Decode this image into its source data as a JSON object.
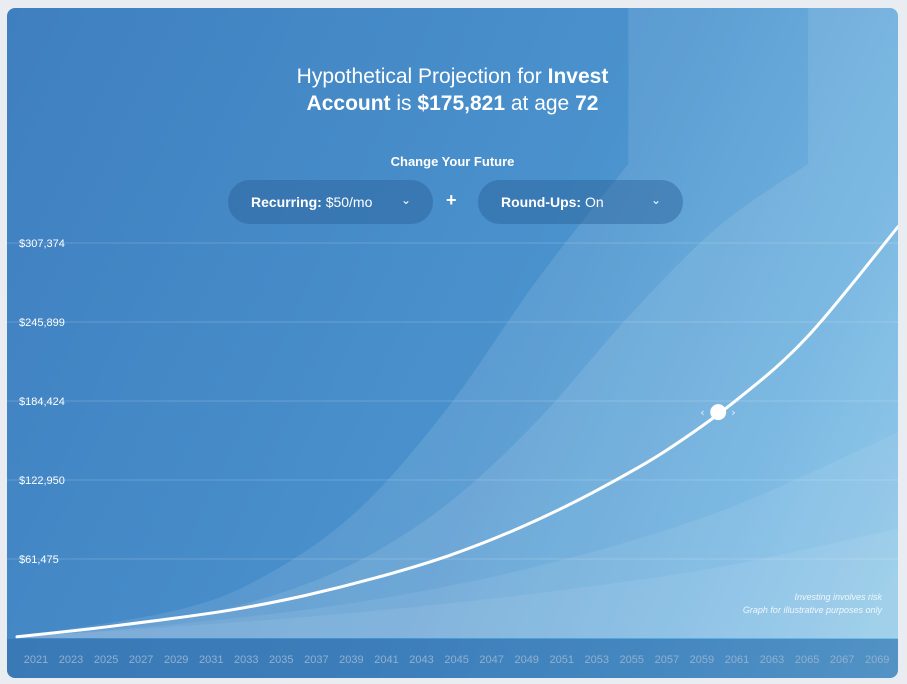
{
  "headline": {
    "prefix": "Hypothetical Projection for",
    "account": "Invest",
    "account2": "Account",
    "is": "is",
    "amount": "$175,821",
    "at_age": "at age",
    "age": "72"
  },
  "controls": {
    "change_label": "Change Your Future",
    "recurring_key": "Recurring:",
    "recurring_value": "$50/mo",
    "plus": "+",
    "roundups_key": "Round-Ups:",
    "roundups_value": "On",
    "chevron": "⌄"
  },
  "disclaimer": {
    "line1": "Investing involves risk",
    "line2": "Graph for illustrative purposes only"
  },
  "colors": {
    "background_start": "#3f7fc0",
    "background_end": "#7cc0e6",
    "line": "#ffffff"
  },
  "chart_data": {
    "type": "area",
    "title": "",
    "xlabel": "",
    "ylabel": "",
    "x_ticks": [
      "2021",
      "2023",
      "2025",
      "2027",
      "2029",
      "2031",
      "2033",
      "2035",
      "2037",
      "2039",
      "2041",
      "2043",
      "2045",
      "2047",
      "2049",
      "2051",
      "2053",
      "2055",
      "2057",
      "2059",
      "2061",
      "2063",
      "2065",
      "2067",
      "2069"
    ],
    "y_ticks": [
      "$61,475",
      "$122,950",
      "$184,424",
      "$245,899",
      "$307,374"
    ],
    "y_tick_values": [
      61475,
      122950,
      184424,
      245899,
      307374
    ],
    "ylim": [
      0,
      368849
    ],
    "xlim": [
      2021,
      2070
    ],
    "grid": true,
    "series": [
      {
        "role": "projection",
        "x": [
          2021,
          2025,
          2029,
          2033,
          2037,
          2041,
          2045,
          2049,
          2053,
          2057,
          2061,
          2065,
          2070
        ],
        "values": [
          1000,
          7000,
          14000,
          22000,
          33000,
          47000,
          64000,
          86000,
          113000,
          145000,
          185000,
          235000,
          320000
        ]
      },
      {
        "role": "band-low",
        "x": [
          2021,
          2030,
          2040,
          2050,
          2060,
          2070
        ],
        "values": [
          1000,
          9000,
          20000,
          35000,
          55000,
          85000
        ]
      },
      {
        "role": "band-mid-low",
        "x": [
          2021,
          2030,
          2040,
          2050,
          2060,
          2070
        ],
        "values": [
          1000,
          11000,
          28000,
          56000,
          98000,
          160000
        ]
      },
      {
        "role": "band-high",
        "x": [
          2021,
          2030,
          2035,
          2040,
          2045,
          2050,
          2055,
          2060,
          2065
        ],
        "values": [
          1000,
          16000,
          32000,
          60000,
          105000,
          170000,
          250000,
          320000,
          368849
        ]
      },
      {
        "role": "band-very-high",
        "x": [
          2021,
          2030,
          2035,
          2040,
          2045,
          2050,
          2055
        ],
        "values": [
          1000,
          22000,
          50000,
          100000,
          180000,
          280000,
          368849
        ]
      }
    ],
    "marker": {
      "x": 2060,
      "y": 175821
    }
  }
}
